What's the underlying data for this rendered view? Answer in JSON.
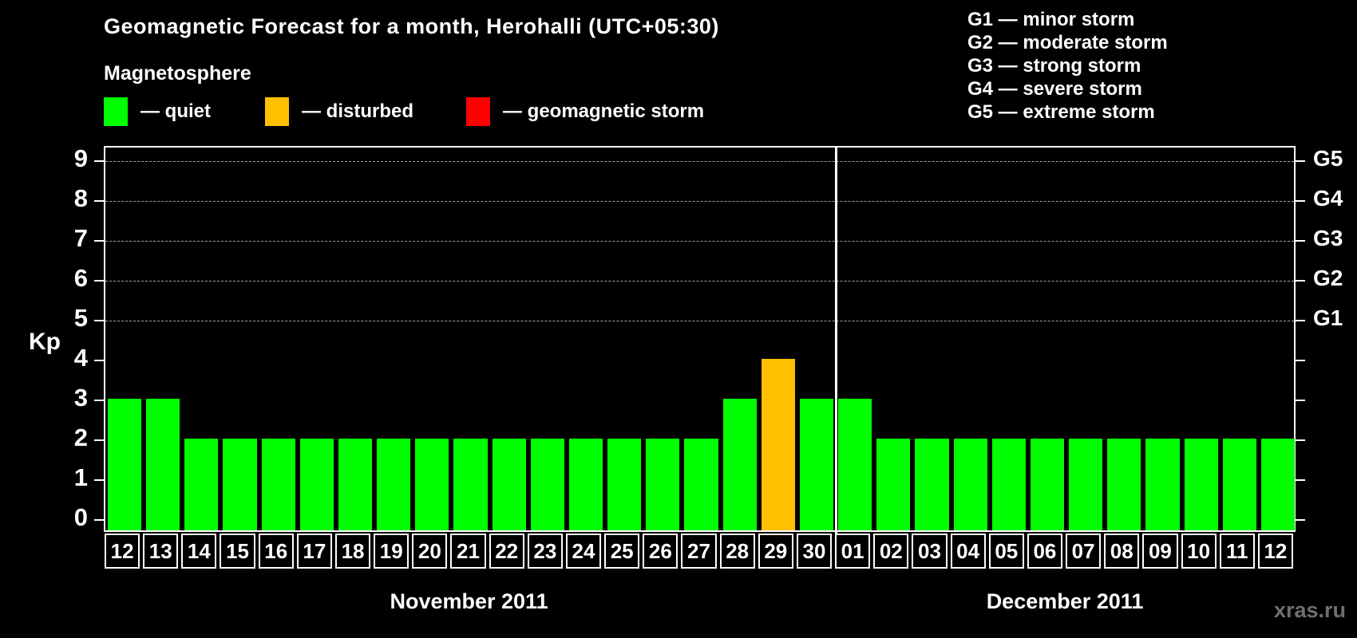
{
  "title": "Geomagnetic Forecast for a month, Herohalli (UTC+05:30)",
  "subtitle": "Magnetosphere",
  "legend": {
    "items": [
      {
        "state": "quiet",
        "label": "— quiet",
        "color": "#00ff00"
      },
      {
        "state": "disturbed",
        "label": "— disturbed",
        "color": "#ffc000"
      },
      {
        "state": "storm",
        "label": "— geomagnetic storm",
        "color": "#ff0000"
      }
    ]
  },
  "storm_legend": [
    "G1 — minor storm",
    "G2 — moderate storm",
    "G3 — strong storm",
    "G4 — severe storm",
    "G5 — extreme storm"
  ],
  "watermark": "xras.ru",
  "colors": {
    "background": "#000000",
    "quiet": "#00ff00",
    "disturbed": "#ffc000",
    "storm": "#ff0000",
    "grid": "#a0a0a0",
    "frame": "#ffffff",
    "watermark": "#6f6f6f"
  },
  "chart_data": {
    "type": "bar",
    "ylabel": "Kp",
    "ylim": [
      0,
      9
    ],
    "yticks": [
      0,
      1,
      2,
      3,
      4,
      5,
      6,
      7,
      8,
      9
    ],
    "grid_levels": [
      5,
      6,
      7,
      8,
      9
    ],
    "right_axis_labels": [
      {
        "kp": 5,
        "label": "G1"
      },
      {
        "kp": 6,
        "label": "G2"
      },
      {
        "kp": 7,
        "label": "G3"
      },
      {
        "kp": 8,
        "label": "G4"
      },
      {
        "kp": 9,
        "label": "G5"
      }
    ],
    "months": [
      {
        "label": "November 2011",
        "days": [
          {
            "day": "12",
            "kp": 3,
            "state": "quiet"
          },
          {
            "day": "13",
            "kp": 3,
            "state": "quiet"
          },
          {
            "day": "14",
            "kp": 2,
            "state": "quiet"
          },
          {
            "day": "15",
            "kp": 2,
            "state": "quiet"
          },
          {
            "day": "16",
            "kp": 2,
            "state": "quiet"
          },
          {
            "day": "17",
            "kp": 2,
            "state": "quiet"
          },
          {
            "day": "18",
            "kp": 2,
            "state": "quiet"
          },
          {
            "day": "19",
            "kp": 2,
            "state": "quiet"
          },
          {
            "day": "20",
            "kp": 2,
            "state": "quiet"
          },
          {
            "day": "21",
            "kp": 2,
            "state": "quiet"
          },
          {
            "day": "22",
            "kp": 2,
            "state": "quiet"
          },
          {
            "day": "23",
            "kp": 2,
            "state": "quiet"
          },
          {
            "day": "24",
            "kp": 2,
            "state": "quiet"
          },
          {
            "day": "25",
            "kp": 2,
            "state": "quiet"
          },
          {
            "day": "26",
            "kp": 2,
            "state": "quiet"
          },
          {
            "day": "27",
            "kp": 2,
            "state": "quiet"
          },
          {
            "day": "28",
            "kp": 3,
            "state": "quiet"
          },
          {
            "day": "29",
            "kp": 4,
            "state": "disturbed"
          },
          {
            "day": "30",
            "kp": 3,
            "state": "quiet"
          }
        ]
      },
      {
        "label": "December 2011",
        "days": [
          {
            "day": "01",
            "kp": 3,
            "state": "quiet"
          },
          {
            "day": "02",
            "kp": 2,
            "state": "quiet"
          },
          {
            "day": "03",
            "kp": 2,
            "state": "quiet"
          },
          {
            "day": "04",
            "kp": 2,
            "state": "quiet"
          },
          {
            "day": "05",
            "kp": 2,
            "state": "quiet"
          },
          {
            "day": "06",
            "kp": 2,
            "state": "quiet"
          },
          {
            "day": "07",
            "kp": 2,
            "state": "quiet"
          },
          {
            "day": "08",
            "kp": 2,
            "state": "quiet"
          },
          {
            "day": "09",
            "kp": 2,
            "state": "quiet"
          },
          {
            "day": "10",
            "kp": 2,
            "state": "quiet"
          },
          {
            "day": "11",
            "kp": 2,
            "state": "quiet"
          },
          {
            "day": "12",
            "kp": 2,
            "state": "quiet"
          }
        ]
      }
    ]
  }
}
